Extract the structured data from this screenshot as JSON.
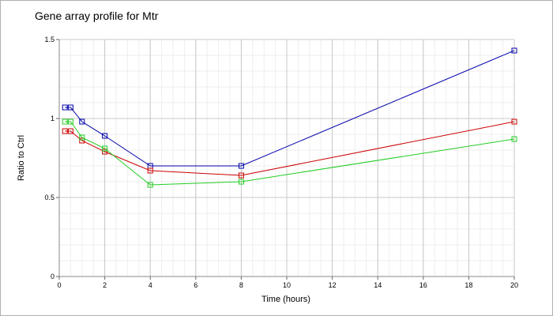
{
  "chart_data": {
    "type": "line",
    "title": "Gene array profile for Mtr",
    "xlabel": "Time (hours)",
    "ylabel": "Ratio to Ctrl",
    "xlim": [
      0,
      20
    ],
    "ylim": [
      0,
      1.5
    ],
    "xticks": [
      "0",
      "2",
      "4",
      "6",
      "8",
      "10",
      "12",
      "14",
      "16",
      "18",
      "20"
    ],
    "yticks": [
      "0",
      "0.5",
      "1",
      "1.5"
    ],
    "grid": true,
    "legend": "none",
    "series": [
      {
        "color": "#0000aa",
        "marker": "square",
        "points": [
          [
            0.25,
            1.07
          ],
          [
            0.5,
            1.07
          ],
          [
            1,
            0.98
          ],
          [
            2,
            0.89
          ],
          [
            4,
            0.7
          ],
          [
            8,
            0.7
          ],
          [
            20,
            1.43
          ]
        ]
      },
      {
        "color": "#cc0000",
        "marker": "square",
        "points": [
          [
            0.25,
            0.92
          ],
          [
            0.5,
            0.92
          ],
          [
            1,
            0.86
          ],
          [
            2,
            0.79
          ],
          [
            4,
            0.67
          ],
          [
            8,
            0.64
          ],
          [
            20,
            0.98
          ]
        ]
      },
      {
        "color": "#22cc22",
        "marker": "square",
        "points": [
          [
            0.25,
            0.98
          ],
          [
            0.5,
            0.98
          ],
          [
            1,
            0.88
          ],
          [
            2,
            0.81
          ],
          [
            4,
            0.58
          ],
          [
            8,
            0.6
          ],
          [
            20,
            0.87
          ]
        ]
      }
    ]
  }
}
